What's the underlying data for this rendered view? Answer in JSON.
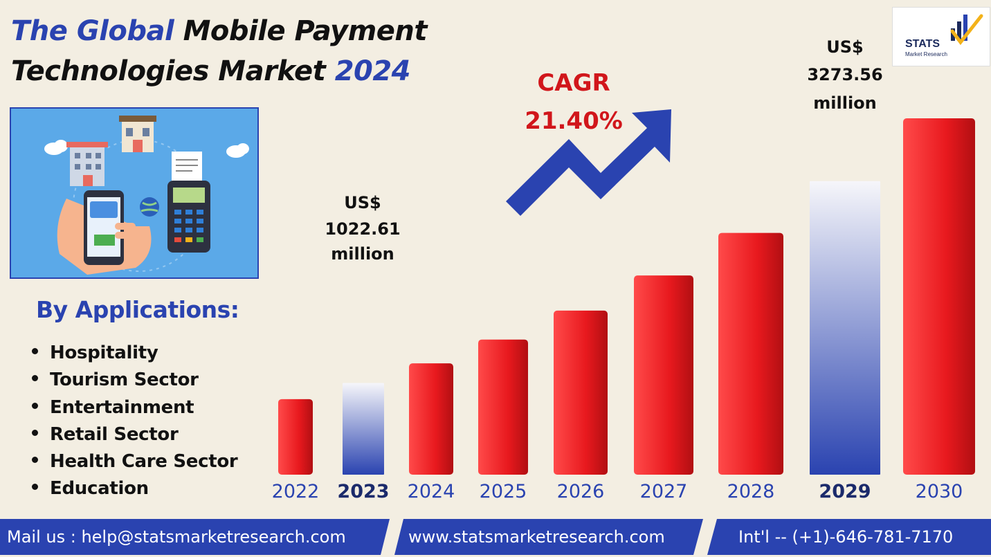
{
  "title": {
    "part1": "The Global",
    "part2": " Mobile Payment",
    "part3": "Technologies Market ",
    "year": "2024"
  },
  "logo": {
    "name": "STATS",
    "sub": "Market Research"
  },
  "applications": {
    "heading": "By Applications:",
    "items": [
      "Hospitality",
      "Tourism Sector",
      "Entertainment",
      "Retail Sector",
      "Health Care Sector",
      "Education"
    ]
  },
  "cagr": {
    "label": "CAGR",
    "value": "21.40%"
  },
  "callouts": [
    {
      "lines": [
        "US$",
        "1022.61",
        "million"
      ]
    },
    {
      "lines": [
        "US$",
        "3273.56",
        "million"
      ]
    }
  ],
  "chart_data": {
    "type": "bar",
    "categories": [
      "2022",
      "2023",
      "2024",
      "2025",
      "2026",
      "2027",
      "2028",
      "2029",
      "2030"
    ],
    "values": [
      842.4,
      1022.61,
      1241.4,
      1507.1,
      1829.6,
      2221.1,
      2696.4,
      3273.56,
      3974.1
    ],
    "highlighted": [
      "2023",
      "2029"
    ],
    "annotations": [
      "US$ 1022.61 million",
      "US$ 3273.56 million",
      "CAGR 21.40%"
    ],
    "colors": {
      "bar": "#e4161b",
      "highlight_top": "#f4f4f8",
      "highlight_bottom": "#2a43b0",
      "axis_text": "#2a43b0"
    }
  },
  "footer": {
    "mail": "Mail us : help@statsmarketresearch.com",
    "web": "www.statsmarketresearch.com",
    "phone": "Int'l -- (+1)-646-781-7170"
  },
  "colors": {
    "background": "#f3eee2",
    "brand_blue": "#2a43b0",
    "accent_red": "#d1161b"
  }
}
